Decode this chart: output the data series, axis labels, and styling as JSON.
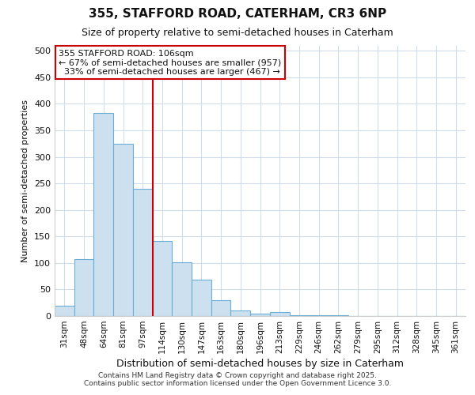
{
  "title_line1": "355, STAFFORD ROAD, CATERHAM, CR3 6NP",
  "title_line2": "Size of property relative to semi-detached houses in Caterham",
  "xlabel": "Distribution of semi-detached houses by size in Caterham",
  "ylabel": "Number of semi-detached properties",
  "categories": [
    "31sqm",
    "48sqm",
    "64sqm",
    "81sqm",
    "97sqm",
    "114sqm",
    "130sqm",
    "147sqm",
    "163sqm",
    "180sqm",
    "196sqm",
    "213sqm",
    "229sqm",
    "246sqm",
    "262sqm",
    "279sqm",
    "295sqm",
    "312sqm",
    "328sqm",
    "345sqm",
    "361sqm"
  ],
  "values": [
    20,
    107,
    383,
    325,
    240,
    142,
    101,
    68,
    30,
    10,
    5,
    7,
    2,
    1,
    1,
    0,
    0,
    0,
    0,
    0,
    0
  ],
  "bar_color": "#cce0f0",
  "bar_edge_color": "#6aaed6",
  "property_label": "355 STAFFORD ROAD: 106sqm",
  "pct_smaller": 67,
  "n_smaller": 957,
  "pct_larger": 33,
  "n_larger": 467,
  "vline_x_index": 5,
  "annotation_box_color": "#ffffff",
  "annotation_box_edge": "#cc0000",
  "vline_color": "#cc0000",
  "ylim": [
    0,
    510
  ],
  "yticks": [
    0,
    50,
    100,
    150,
    200,
    250,
    300,
    350,
    400,
    450,
    500
  ],
  "footer": "Contains HM Land Registry data © Crown copyright and database right 2025.\nContains public sector information licensed under the Open Government Licence 3.0.",
  "background_color": "#ffffff",
  "plot_background": "#ffffff",
  "grid_color": "#d0dce8"
}
